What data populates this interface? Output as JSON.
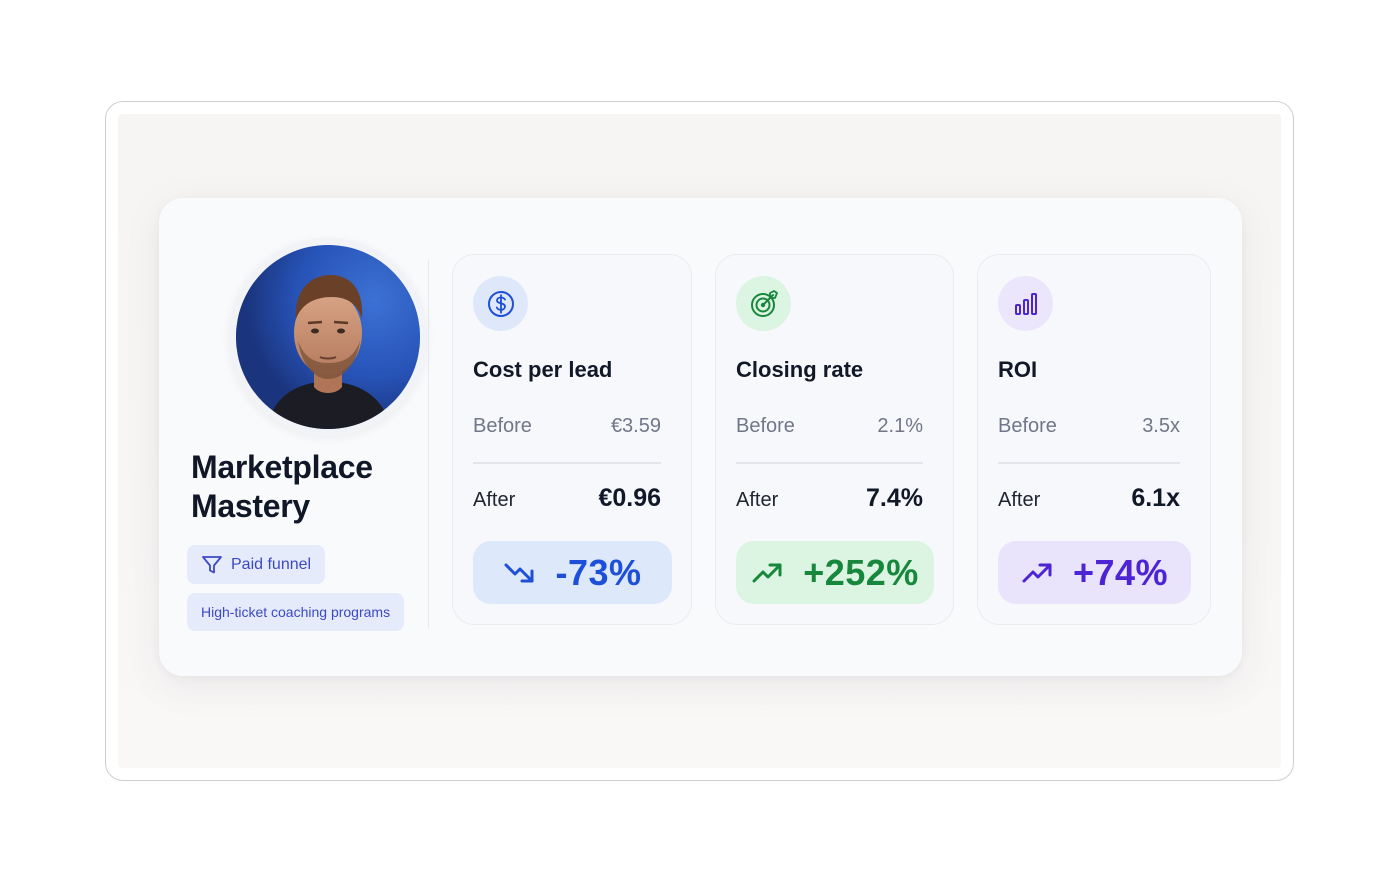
{
  "profile": {
    "name_line1": "Marketplace",
    "name_line2": "Mastery",
    "tag_funnel": "Paid funnel",
    "tag_niche": "High-ticket coaching programs"
  },
  "metrics": [
    {
      "title": "Cost per lead",
      "before_label": "Before",
      "before_value": "€3.59",
      "after_label": "After",
      "after_value": "€0.96",
      "change": "-73%",
      "icon": "dollar-circle-icon",
      "trend_icon": "trend-down-icon",
      "accent": "#1d4fd8"
    },
    {
      "title": "Closing rate",
      "before_label": "Before",
      "before_value": "2.1%",
      "after_label": "After",
      "after_value": "7.4%",
      "change": "+252%",
      "icon": "target-icon",
      "trend_icon": "trend-up-icon",
      "accent": "#17873c"
    },
    {
      "title": "ROI",
      "before_label": "Before",
      "before_value": "3.5x",
      "after_label": "After",
      "after_value": "6.1x",
      "change": "+74%",
      "icon": "bar-chart-icon",
      "trend_icon": "trend-up-icon",
      "accent": "#4d24d4"
    }
  ]
}
